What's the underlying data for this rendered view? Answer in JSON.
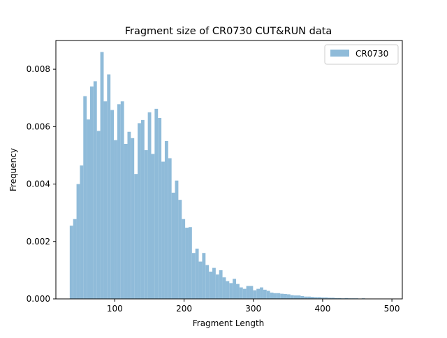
{
  "colors": {
    "bar": "#8fbbd9",
    "axis": "#000000"
  },
  "chart_data": {
    "type": "bar",
    "title": "Fragment size of CR0730 CUT&RUN data",
    "xlabel": "Fragment Length",
    "ylabel": "Frequency",
    "xlim": [
      15,
      515
    ],
    "ylim": [
      0,
      0.009
    ],
    "xticks": [
      100,
      200,
      300,
      400,
      500
    ],
    "yticks": [
      "0.000",
      "0.002",
      "0.004",
      "0.006",
      "0.008"
    ],
    "ytick_values": [
      0,
      0.002,
      0.004,
      0.006,
      0.008
    ],
    "legend": {
      "position": "top-right",
      "entries": [
        "CR0730"
      ]
    },
    "bin_width": 4.9,
    "bin_start": 35,
    "series": [
      {
        "name": "CR0730",
        "values": [
          0.00255,
          0.00278,
          0.004,
          0.00465,
          0.00706,
          0.00625,
          0.0074,
          0.00758,
          0.00585,
          0.0086,
          0.00688,
          0.00782,
          0.00658,
          0.00553,
          0.00678,
          0.00688,
          0.0054,
          0.00582,
          0.0056,
          0.00435,
          0.00612,
          0.00623,
          0.00518,
          0.0065,
          0.00505,
          0.00662,
          0.0063,
          0.00478,
          0.0055,
          0.0049,
          0.0037,
          0.00412,
          0.00345,
          0.00278,
          0.00248,
          0.0025,
          0.0016,
          0.00175,
          0.0013,
          0.0016,
          0.00118,
          0.00095,
          0.00108,
          0.00085,
          0.001,
          0.00075,
          0.00062,
          0.00055,
          0.0007,
          0.00052,
          0.0004,
          0.00035,
          0.00045,
          0.00045,
          0.0003,
          0.00035,
          0.0004,
          0.00032,
          0.00028,
          0.00022,
          0.0002,
          0.0002,
          0.00018,
          0.00017,
          0.00016,
          0.00013,
          0.00012,
          0.00012,
          0.0001,
          8e-05,
          8e-05,
          7e-05,
          6e-05,
          6e-05,
          5e-05,
          5e-05,
          4e-05,
          4e-05,
          3e-05,
          3e-05,
          2e-05,
          3e-05,
          2e-05,
          2e-05,
          2e-05,
          1e-05,
          2e-05,
          1e-05,
          1e-05,
          1e-05,
          1e-05,
          1e-05,
          1e-05,
          1e-05,
          1e-05,
          1e-05
        ]
      }
    ]
  }
}
